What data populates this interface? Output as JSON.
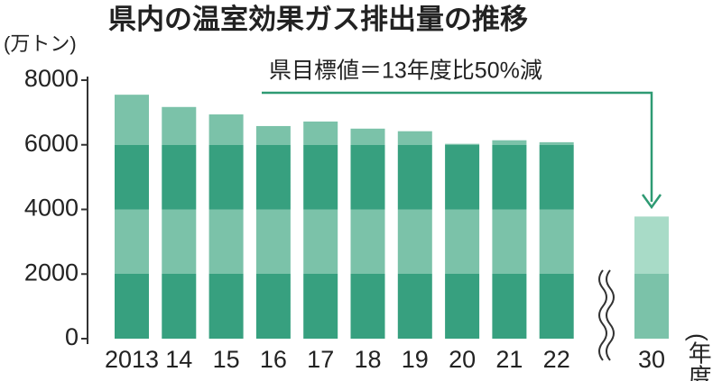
{
  "chart_data": {
    "type": "bar",
    "title": "県内の温室効果ガス排出量の推移",
    "y_label": "(万トン)",
    "x_label": "(年度)",
    "annotation": "県目標値＝13年度比50%減",
    "categories": [
      "2013",
      "14",
      "15",
      "16",
      "17",
      "18",
      "19",
      "20",
      "21",
      "22",
      "30"
    ],
    "values": [
      7550,
      7170,
      6940,
      6580,
      6720,
      6500,
      6420,
      6030,
      6140,
      6080,
      3780
    ],
    "band_colors": [
      "#37a07f",
      "#7bc2a9"
    ],
    "target_band_colors": [
      "#7bc2a9",
      "#a8dbc7"
    ],
    "ylim": [
      0,
      8000
    ],
    "yticks": [
      0,
      2000,
      4000,
      6000,
      8000
    ]
  }
}
